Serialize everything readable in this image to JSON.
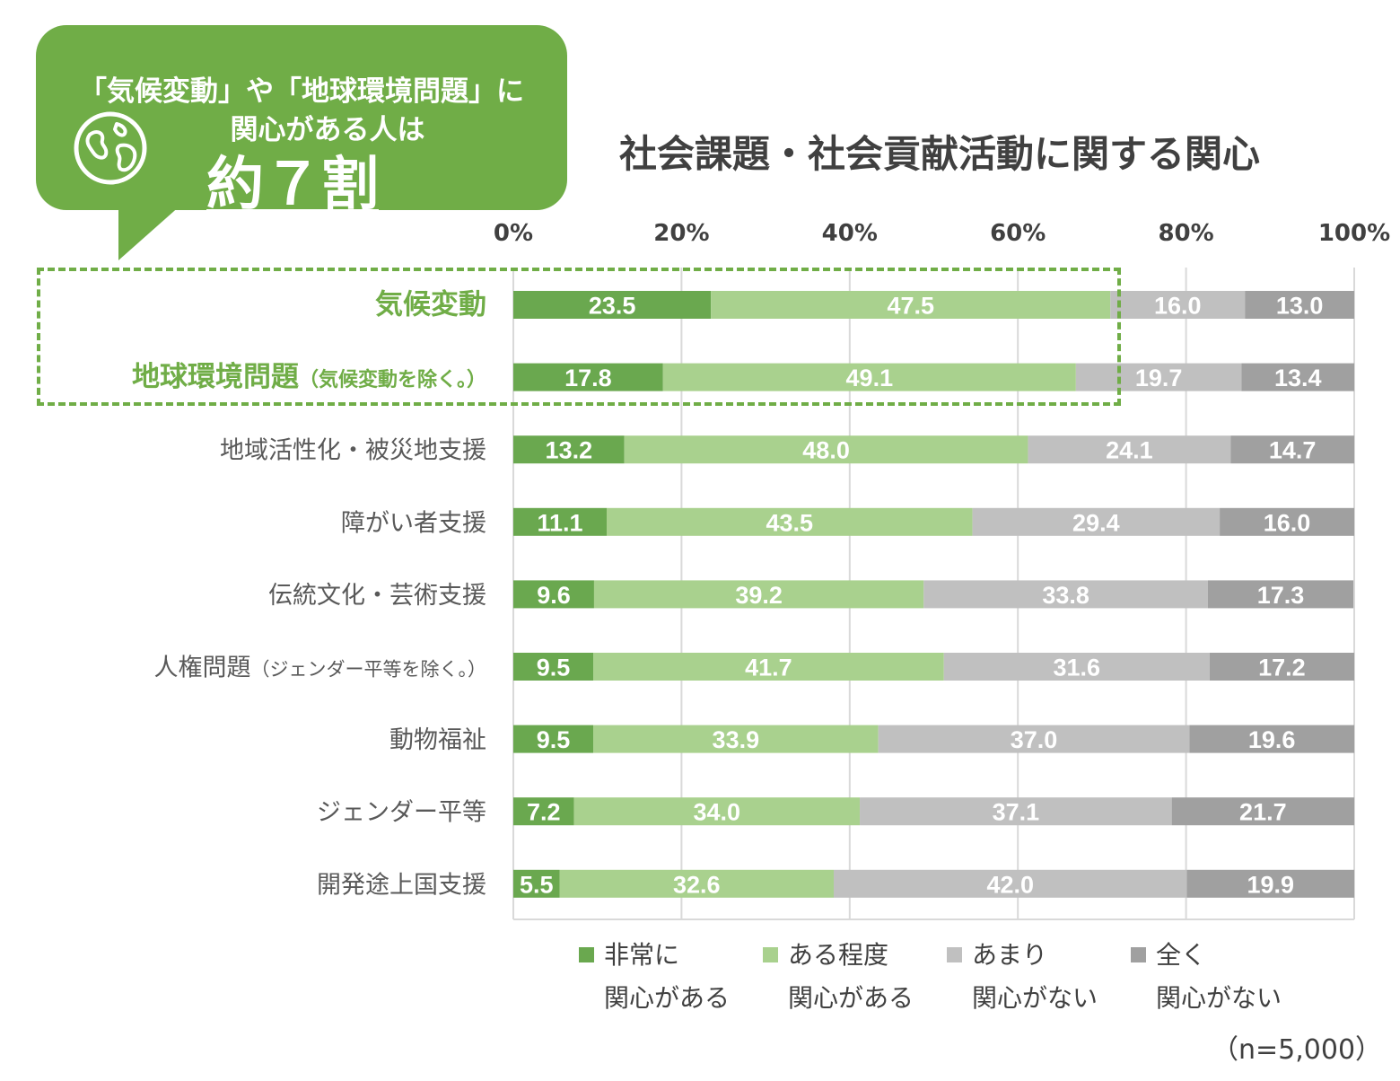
{
  "callout": {
    "line1": "「気候変動」や「地球環境問題」に",
    "line2": "関心がある人は",
    "big": "約７割",
    "icon": "globe-icon",
    "color": "#70ad47"
  },
  "chart_data": {
    "type": "bar",
    "orientation": "horizontal",
    "stacked": true,
    "title": "社会課題・社会貢献活動に関する関心",
    "xlim": [
      0,
      100
    ],
    "ticks": [
      "0%",
      "20%",
      "40%",
      "60%",
      "80%",
      "100%"
    ],
    "tick_values": [
      0,
      20,
      40,
      60,
      80,
      100
    ],
    "categories": [
      {
        "label": "気候変動",
        "note": "",
        "highlight": true
      },
      {
        "label": "地球環境問題",
        "note": "（気候変動を除く。）",
        "highlight": true
      },
      {
        "label": "地域活性化・被災地支援",
        "note": "",
        "highlight": false
      },
      {
        "label": "障がい者支援",
        "note": "",
        "highlight": false
      },
      {
        "label": "伝統文化・芸術支援",
        "note": "",
        "highlight": false
      },
      {
        "label": "人権問題",
        "note": "（ジェンダー平等を除く。）",
        "highlight": false
      },
      {
        "label": "動物福祉",
        "note": "",
        "highlight": false
      },
      {
        "label": "ジェンダー平等",
        "note": "",
        "highlight": false
      },
      {
        "label": "開発途上国支援",
        "note": "",
        "highlight": false
      }
    ],
    "series": [
      {
        "name": "非常に関心がある",
        "legend_l1": "非常に",
        "legend_l2": "関心がある",
        "color": "#6aa84f",
        "values": [
          23.5,
          17.8,
          13.2,
          11.1,
          9.6,
          9.5,
          9.5,
          7.2,
          5.5
        ]
      },
      {
        "name": "ある程度関心がある",
        "legend_l1": "ある程度",
        "legend_l2": "関心がある",
        "color": "#a9d18e",
        "values": [
          47.5,
          49.1,
          48.0,
          43.5,
          39.2,
          41.7,
          33.9,
          34.0,
          32.6
        ]
      },
      {
        "name": "あまり関心がない",
        "legend_l1": "あまり",
        "legend_l2": "関心がない",
        "color": "#c0c0c0",
        "values": [
          16.0,
          19.7,
          24.1,
          29.4,
          33.8,
          31.6,
          37.0,
          37.1,
          42.0
        ]
      },
      {
        "name": "全く関心がない",
        "legend_l1": "全く",
        "legend_l2": "関心がない",
        "color": "#a0a0a0",
        "values": [
          13.0,
          13.4,
          14.7,
          16.0,
          17.3,
          17.2,
          19.6,
          21.7,
          19.9
        ]
      }
    ],
    "highlight_color": "#70ad47",
    "legend_position": "bottom",
    "sample_note": "（n=5,000）"
  }
}
